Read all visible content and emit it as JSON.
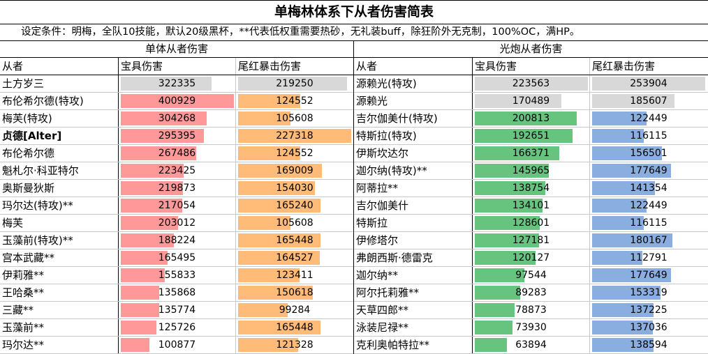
{
  "title": "单梅林体系下从者伤害简表",
  "subtitle": "设定条件：明梅，全队10技能，默认20级黑杯，**代表低权重需要热砂，无礼装buff，除狂阶外无克制，100%OC，满HP。",
  "colors": {
    "gray": "#d8d8d8",
    "pink": "#ff9999",
    "orange": "#ffbb77",
    "green": "#66c47f",
    "blue": "#8aaee0"
  },
  "left": {
    "section": "单体从者伤害",
    "headers": [
      "从者",
      "宝具伤害",
      "尾红暴击伤害"
    ],
    "max1": 400929,
    "max2": 227318,
    "rows": [
      {
        "name": "土方岁三",
        "v1": 322335,
        "v2": 219250,
        "c1": "gray",
        "c2": "gray"
      },
      {
        "name": "布伦希尔德(特攻)",
        "v1": 400929,
        "v2": 124552,
        "c1": "pink",
        "c2": "orange"
      },
      {
        "name": "梅芙(特攻)",
        "v1": 304268,
        "v2": 105608,
        "c1": "pink",
        "c2": "orange"
      },
      {
        "name": "贞德[Alter]",
        "v1": 295395,
        "v2": 227318,
        "c1": "pink",
        "c2": "orange",
        "bold": true
      },
      {
        "name": "布伦希尔德",
        "v1": 267486,
        "v2": 124552,
        "c1": "pink",
        "c2": "orange"
      },
      {
        "name": "魁札尔·科亚特尔",
        "v1": 223425,
        "v2": 169009,
        "c1": "pink",
        "c2": "orange"
      },
      {
        "name": "奥斯曼狄斯",
        "v1": 219873,
        "v2": 154030,
        "c1": "pink",
        "c2": "orange"
      },
      {
        "name": "玛尔达(特攻)**",
        "v1": 217054,
        "v2": 165240,
        "c1": "pink",
        "c2": "orange"
      },
      {
        "name": "梅芙",
        "v1": 203012,
        "v2": 105608,
        "c1": "pink",
        "c2": "orange"
      },
      {
        "name": "玉藻前(特攻)**",
        "v1": 188224,
        "v2": 165448,
        "c1": "pink",
        "c2": "orange"
      },
      {
        "name": "宫本武藏**",
        "v1": 165495,
        "v2": 164527,
        "c1": "pink",
        "c2": "orange"
      },
      {
        "name": "伊莉雅**",
        "v1": 155833,
        "v2": 123411,
        "c1": "pink",
        "c2": "orange"
      },
      {
        "name": "王哈桑**",
        "v1": 135868,
        "v2": 150618,
        "c1": "pink",
        "c2": "orange"
      },
      {
        "name": "三藏**",
        "v1": 135774,
        "v2": 99284,
        "c1": "pink",
        "c2": "orange"
      },
      {
        "name": "玉藻前**",
        "v1": 125726,
        "v2": 165448,
        "c1": "pink",
        "c2": "orange"
      },
      {
        "name": "玛尔达**",
        "v1": 100877,
        "v2": 121328,
        "c1": "pink",
        "c2": "orange"
      }
    ]
  },
  "right": {
    "section": "光炮从者伤害",
    "headers": [
      "从者",
      "宝具伤害",
      "尾红暴击伤害"
    ],
    "max1": 223563,
    "max2": 253904,
    "rows": [
      {
        "name": "源赖光(特攻)",
        "v1": 223563,
        "v2": 253904,
        "c1": "gray",
        "c2": "gray"
      },
      {
        "name": "源赖光",
        "v1": 170489,
        "v2": 185607,
        "c1": "gray",
        "c2": "gray"
      },
      {
        "name": "吉尔伽美什(特攻)",
        "v1": 200813,
        "v2": 122449,
        "c1": "green",
        "c2": "blue"
      },
      {
        "name": "特斯拉(特攻)",
        "v1": 192651,
        "v2": 116115,
        "c1": "green",
        "c2": "blue"
      },
      {
        "name": "伊斯坎达尔",
        "v1": 166371,
        "v2": 156501,
        "c1": "green",
        "c2": "blue"
      },
      {
        "name": "迦尔纳(特攻)**",
        "v1": 145965,
        "v2": 177649,
        "c1": "green",
        "c2": "blue"
      },
      {
        "name": "阿蒂拉**",
        "v1": 138754,
        "v2": 141354,
        "c1": "green",
        "c2": "blue"
      },
      {
        "name": "吉尔伽美什",
        "v1": 134101,
        "v2": 122449,
        "c1": "green",
        "c2": "blue"
      },
      {
        "name": "特斯拉",
        "v1": 128601,
        "v2": 116115,
        "c1": "green",
        "c2": "blue"
      },
      {
        "name": "伊修塔尔",
        "v1": 127181,
        "v2": 180167,
        "c1": "green",
        "c2": "blue"
      },
      {
        "name": "弗朗西斯·德雷克",
        "v1": 120127,
        "v2": 112791,
        "c1": "green",
        "c2": "blue"
      },
      {
        "name": "迦尔纳**",
        "v1": 97544,
        "v2": 177649,
        "c1": "green",
        "c2": "blue"
      },
      {
        "name": "阿尔托莉雅**",
        "v1": 89283,
        "v2": 153319,
        "c1": "green",
        "c2": "blue"
      },
      {
        "name": "天草四郎**",
        "v1": 78873,
        "v2": 137225,
        "c1": "green",
        "c2": "blue"
      },
      {
        "name": "泳装尼禄**",
        "v1": 73930,
        "v2": 137036,
        "c1": "green",
        "c2": "blue"
      },
      {
        "name": "克利奥帕特拉**",
        "v1": 63894,
        "v2": 138594,
        "c1": "green",
        "c2": "blue"
      }
    ]
  }
}
